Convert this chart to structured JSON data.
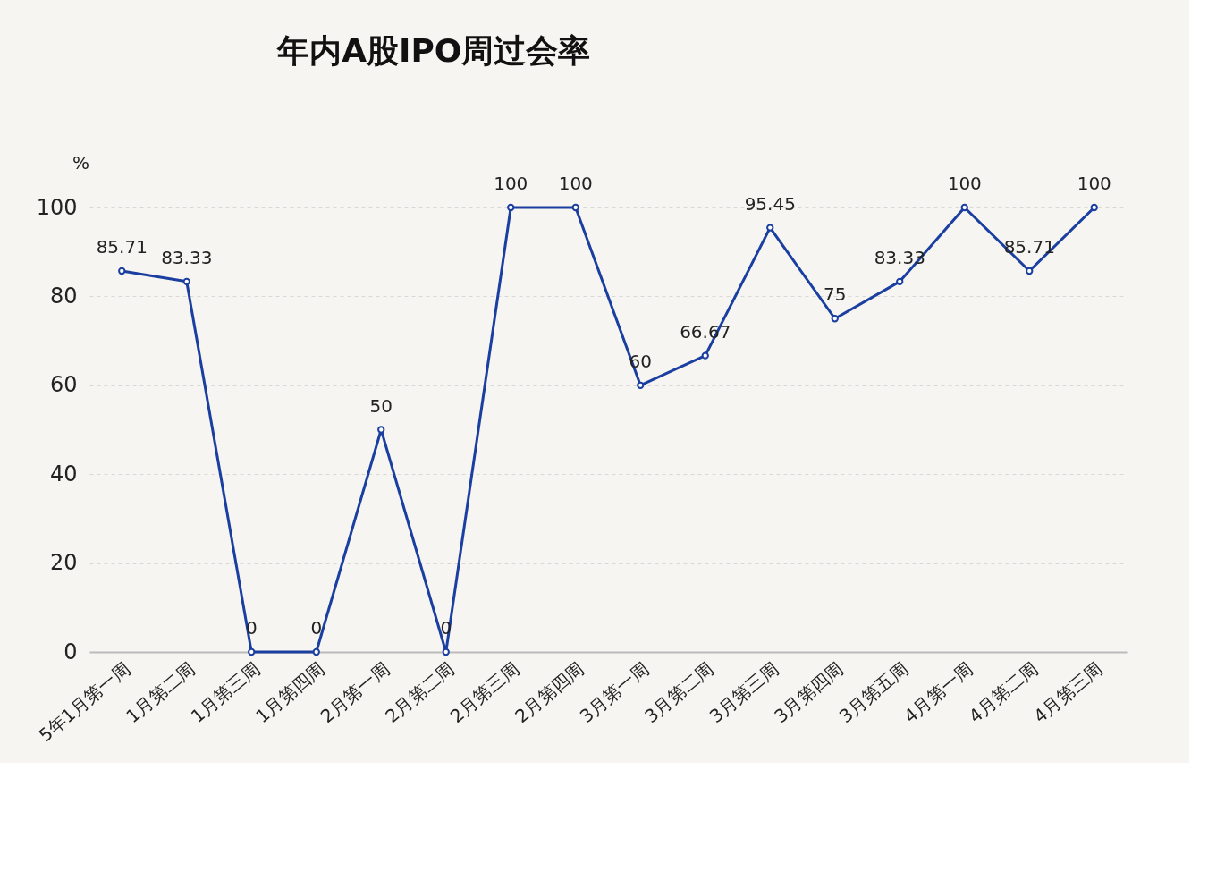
{
  "chart_data": {
    "type": "line",
    "title": "年内A股IPO周过会率",
    "ylabel": "%",
    "categories": [
      "5年1月第一周",
      "1月第二周",
      "1月第三周",
      "1月第四周",
      "2月第一周",
      "2月第二周",
      "2月第三周",
      "2月第四周",
      "3月第一周",
      "3月第二周",
      "3月第三周",
      "3月第四周",
      "3月第五周",
      "4月第一周",
      "4月第二周",
      "4月第三周"
    ],
    "series": [
      {
        "color": "#1a3fa0",
        "values": [
          85.71,
          83.33,
          0,
          0,
          50,
          0,
          100,
          100,
          60,
          66.67,
          95.45,
          75,
          83.33,
          100,
          85.71,
          100
        ]
      }
    ],
    "ylim": [
      0,
      100
    ],
    "yticks": [
      0,
      20,
      40,
      60,
      80,
      100
    ],
    "grid": "y",
    "marker": "circle",
    "line_style": "solid",
    "data_labels": true
  }
}
